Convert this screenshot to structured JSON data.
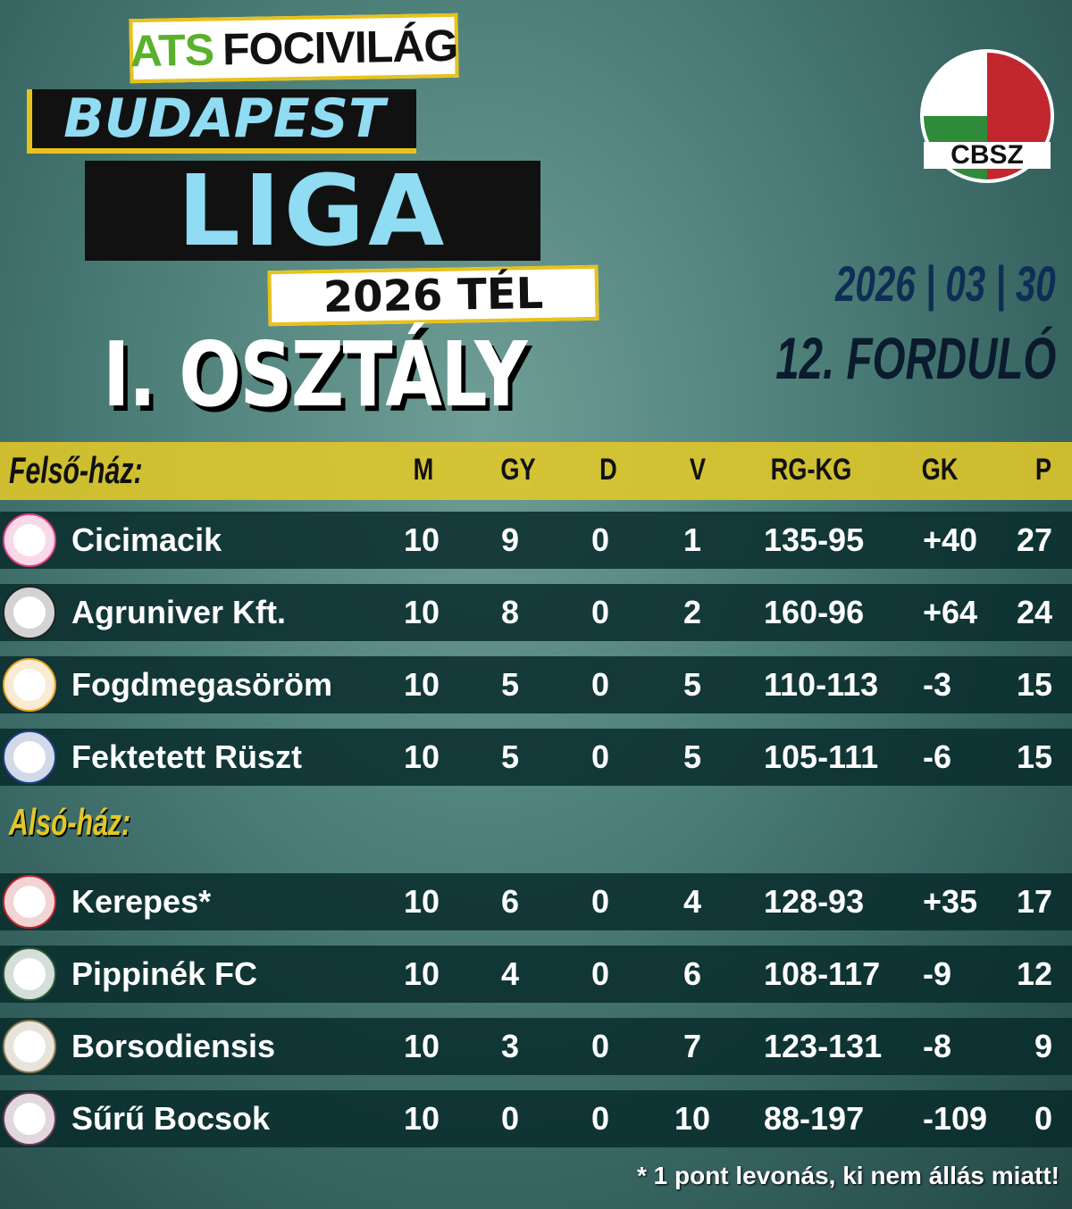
{
  "header": {
    "brand_a": "A",
    "brand_ts": "TS",
    "brand_rest": "FOCIVILÁG",
    "city": "BUDAPEST",
    "league": "LIGA",
    "season": "2026 TÉL",
    "division": "I. OSZTÁLY",
    "federation_logo_text": "CBSZ",
    "date": "2026 | 03 | 30",
    "round": "12. FORDULÓ"
  },
  "columns": [
    "M",
    "GY",
    "D",
    "V",
    "RG-KG",
    "GK",
    "P"
  ],
  "upper": {
    "label": "Felső-ház:",
    "rows": [
      {
        "team": "Cicimacik",
        "m": "10",
        "gy": "9",
        "d": "0",
        "v": "1",
        "goals": "135-95",
        "gd": "+40",
        "p": "27",
        "badge": "#e0408a"
      },
      {
        "team": "Agruniver Kft.",
        "m": "10",
        "gy": "8",
        "d": "0",
        "v": "2",
        "goals": "160-96",
        "gd": "+64",
        "p": "24",
        "badge": "#222222"
      },
      {
        "team": "Fogdmegasöröm",
        "m": "10",
        "gy": "5",
        "d": "0",
        "v": "5",
        "goals": "110-113",
        "gd": "-3",
        "p": "15",
        "badge": "#e8a020"
      },
      {
        "team": "Fektetett Rüszt",
        "m": "10",
        "gy": "5",
        "d": "0",
        "v": "5",
        "goals": "105-111",
        "gd": "-6",
        "p": "15",
        "badge": "#1f3f8a"
      }
    ]
  },
  "lower": {
    "label": "Alsó-ház:",
    "rows": [
      {
        "team": "Kerepes*",
        "m": "10",
        "gy": "6",
        "d": "0",
        "v": "4",
        "goals": "128-93",
        "gd": "+35",
        "p": "17",
        "badge": "#c2262e"
      },
      {
        "team": "Pippinék FC",
        "m": "10",
        "gy": "4",
        "d": "0",
        "v": "6",
        "goals": "108-117",
        "gd": "-9",
        "p": "12",
        "badge": "#2f5a3a"
      },
      {
        "team": "Borsodiensis",
        "m": "10",
        "gy": "3",
        "d": "0",
        "v": "7",
        "goals": "123-131",
        "gd": "-8",
        "p": "9",
        "badge": "#8a7a50"
      },
      {
        "team": "Sűrű Bocsok",
        "m": "10",
        "gy": "0",
        "d": "0",
        "v": "10",
        "goals": "88-197",
        "gd": "-109",
        "p": "0",
        "badge": "#6a3a5a"
      }
    ]
  },
  "footnote": "* 1 pont levonás, ki nem állás miatt!",
  "colors": {
    "header_band": "#e1c828",
    "row_bg": "#082c2c",
    "accent_blue": "#8fdcf3",
    "date_color": "#0e2e55",
    "section_lower": "#e1c828"
  }
}
